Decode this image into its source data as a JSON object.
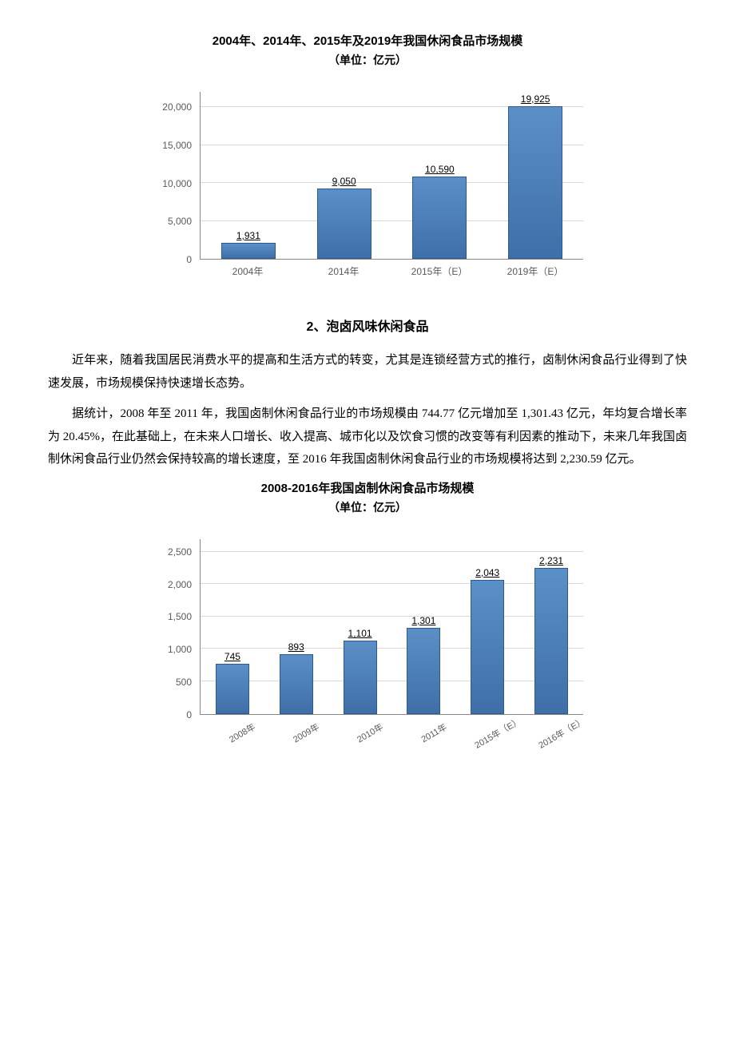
{
  "chart1": {
    "type": "bar",
    "title": "2004年、2014年、2015年及2019年我国休闲食品市场规模",
    "subtitle": "（单位：亿元）",
    "categories": [
      "2004年",
      "2014年",
      "2015年（E）",
      "2019年（E）"
    ],
    "values": [
      1931,
      9050,
      10590,
      19925
    ],
    "value_labels": [
      "1,931",
      "9,050",
      "10,590",
      "19,925"
    ],
    "ylim": [
      0,
      22000
    ],
    "yticks": [
      0,
      5000,
      10000,
      15000,
      20000
    ],
    "ytick_labels": [
      "0",
      "5,000",
      "10,000",
      "15,000",
      "20,000"
    ],
    "bar_color_top": "#5b8fc7",
    "bar_color_bottom": "#3f6fa8",
    "bar_border": "#2c5a8f",
    "grid_color": "#d9d9d9",
    "axis_color": "#888888",
    "label_fontsize": 12,
    "title_fontsize": 15,
    "bar_width": 0.55
  },
  "section": {
    "heading": "2、泡卤风味休闲食品",
    "para1": "近年来，随着我国居民消费水平的提高和生活方式的转变，尤其是连锁经营方式的推行，卤制休闲食品行业得到了快速发展，市场规模保持快速增长态势。",
    "para2": "据统计，2008 年至 2011 年，我国卤制休闲食品行业的市场规模由 744.77 亿元增加至 1,301.43 亿元，年均复合增长率为 20.45%，在此基础上，在未来人口增长、收入提高、城市化以及饮食习惯的改变等有利因素的推动下，未来几年我国卤制休闲食品行业仍然会保持较高的增长速度，至 2016 年我国卤制休闲食品行业的市场规模将达到 2,230.59 亿元。"
  },
  "chart2": {
    "type": "bar",
    "title": "2008-2016年我国卤制休闲食品市场规模",
    "subtitle": "（单位：亿元）",
    "categories": [
      "2008年",
      "2009年",
      "2010年",
      "2011年",
      "2015年（E）",
      "2016年（E）"
    ],
    "values": [
      745,
      893,
      1101,
      1301,
      2043,
      2231
    ],
    "value_labels": [
      "745",
      "893",
      "1,101",
      "1,301",
      "2,043",
      "2,231"
    ],
    "ylim": [
      0,
      2700
    ],
    "yticks": [
      0,
      500,
      1000,
      1500,
      2000,
      2500
    ],
    "ytick_labels": [
      "0",
      "500",
      "1,000",
      "1,500",
      "2,000",
      "2,500"
    ],
    "bar_color_top": "#5b8fc7",
    "bar_color_bottom": "#3f6fa8",
    "bar_border": "#2c5a8f",
    "grid_color": "#d9d9d9",
    "axis_color": "#888888",
    "label_fontsize": 12,
    "title_fontsize": 15,
    "bar_width": 0.5
  }
}
